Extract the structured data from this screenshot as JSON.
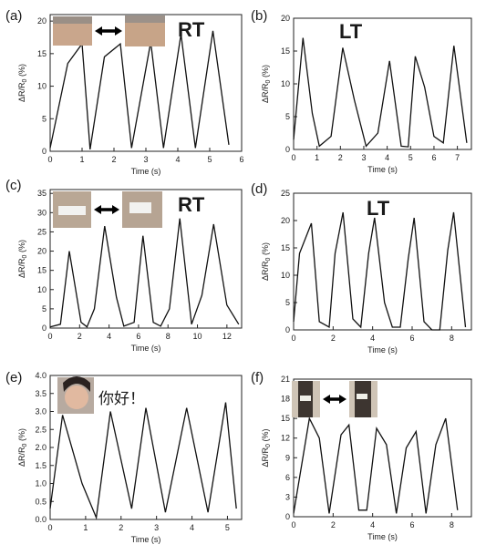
{
  "chart_data": [
    {
      "type": "line",
      "panel_label": "(a)",
      "annotation": "RT",
      "xlabel": "Time (s)",
      "ylabel": "ΔR/R0 (%)",
      "xlim": [
        0,
        6
      ],
      "ylim": [
        0,
        21
      ],
      "xticks": [
        0,
        1,
        2,
        3,
        4,
        5,
        6
      ],
      "yticks": [
        0,
        5,
        10,
        15,
        20
      ],
      "x": [
        0,
        0.55,
        1.0,
        1.25,
        1.7,
        2.2,
        2.55,
        3.15,
        3.55,
        4.1,
        4.55,
        5.1,
        5.6
      ],
      "y": [
        0.5,
        13.5,
        16.5,
        0.3,
        14.5,
        16.5,
        0.5,
        16.8,
        0.5,
        18.0,
        0.5,
        18.5,
        1.0
      ]
    },
    {
      "type": "line",
      "panel_label": "(b)",
      "annotation": "LT",
      "xlabel": "Time (s)",
      "ylabel": "ΔR/R0 (%)",
      "xlim": [
        0,
        7.6
      ],
      "ylim": [
        0,
        20
      ],
      "xticks": [
        0,
        1,
        2,
        3,
        4,
        5,
        6,
        7
      ],
      "yticks": [
        0,
        5,
        10,
        15,
        20
      ],
      "x": [
        0,
        0.4,
        0.8,
        1.1,
        1.6,
        2.1,
        2.6,
        3.1,
        3.6,
        4.1,
        4.6,
        4.9,
        5.2,
        5.6,
        6.0,
        6.4,
        6.85,
        7.4
      ],
      "y": [
        1.5,
        17.0,
        5.5,
        0.5,
        2.0,
        15.5,
        7.5,
        0.5,
        2.5,
        13.5,
        0.5,
        0.4,
        14.2,
        9.5,
        2.0,
        1.0,
        15.8,
        1.0
      ]
    },
    {
      "type": "line",
      "panel_label": "(c)",
      "annotation": "RT",
      "xlabel": "Time (s)",
      "ylabel": "ΔR/R0 (%)",
      "xlim": [
        0,
        13
      ],
      "ylim": [
        0,
        36
      ],
      "xticks": [
        0,
        2,
        4,
        6,
        8,
        10,
        12
      ],
      "yticks": [
        0,
        5,
        10,
        15,
        20,
        25,
        30,
        35
      ],
      "x": [
        0,
        0.7,
        1.3,
        2.1,
        2.5,
        3.0,
        3.7,
        4.5,
        5.0,
        5.7,
        6.3,
        7.0,
        7.5,
        8.1,
        8.8,
        9.6,
        10.3,
        11.1,
        12.0,
        12.8
      ],
      "y": [
        0.3,
        1.0,
        20.0,
        1.5,
        0.3,
        5.0,
        26.5,
        8.0,
        0.5,
        1.5,
        24.0,
        1.5,
        0.5,
        5.0,
        28.5,
        1.0,
        8.5,
        27.0,
        6.0,
        1.0
      ]
    },
    {
      "type": "line",
      "panel_label": "(d)",
      "annotation": "LT",
      "xlabel": "Time (s)",
      "ylabel": "ΔR/R0 (%)",
      "xlim": [
        0,
        9
      ],
      "ylim": [
        0,
        25
      ],
      "xticks": [
        0,
        2,
        4,
        6,
        8
      ],
      "yticks": [
        0,
        5,
        10,
        15,
        20,
        25
      ],
      "x": [
        0,
        0.3,
        0.9,
        1.3,
        1.8,
        2.1,
        2.5,
        3.0,
        3.4,
        3.8,
        4.1,
        4.6,
        5.0,
        5.4,
        5.8,
        6.1,
        6.6,
        7.0,
        7.4,
        7.8,
        8.1,
        8.7
      ],
      "y": [
        1.5,
        14.0,
        19.5,
        1.5,
        0.5,
        14.0,
        21.5,
        2.0,
        0.5,
        14.0,
        20.5,
        5.0,
        0.5,
        0.5,
        13.0,
        20.5,
        1.5,
        0.0,
        0.0,
        14.5,
        21.5,
        0.5
      ]
    },
    {
      "type": "line",
      "panel_label": "(e)",
      "annotation": "你好！",
      "xlabel": "Time (s)",
      "ylabel": "ΔR/R0 (%)",
      "xlim": [
        0,
        5.4
      ],
      "ylim": [
        0,
        4.0
      ],
      "xticks": [
        0,
        1,
        2,
        3,
        4,
        5
      ],
      "yticks": [
        0.0,
        0.5,
        1.0,
        1.5,
        2.0,
        2.5,
        3.0,
        3.5,
        4.0
      ],
      "x": [
        0,
        0.35,
        0.9,
        1.3,
        1.7,
        2.3,
        2.7,
        3.25,
        3.85,
        4.45,
        4.95,
        5.25
      ],
      "y": [
        0.3,
        2.9,
        1.0,
        0.05,
        3.0,
        0.3,
        3.1,
        0.2,
        3.1,
        0.2,
        3.25,
        0.3
      ]
    },
    {
      "type": "line",
      "panel_label": "(f)",
      "annotation": "",
      "xlabel": "Time (s)",
      "ylabel": "ΔR/R0 (%)",
      "xlim": [
        0,
        9
      ],
      "ylim": [
        0,
        21
      ],
      "xticks": [
        0,
        2,
        4,
        6,
        8
      ],
      "yticks": [
        0,
        3,
        6,
        9,
        12,
        15,
        18,
        21
      ],
      "x": [
        0,
        0.8,
        1.3,
        1.8,
        2.4,
        2.8,
        3.3,
        3.7,
        4.2,
        4.7,
        5.2,
        5.7,
        6.2,
        6.7,
        7.2,
        7.7,
        8.3
      ],
      "y": [
        0.5,
        15.0,
        12.0,
        0.5,
        12.5,
        14.0,
        1.0,
        1.0,
        13.5,
        11.0,
        0.5,
        10.5,
        13.0,
        0.5,
        11.0,
        15.0,
        1.0
      ]
    }
  ]
}
